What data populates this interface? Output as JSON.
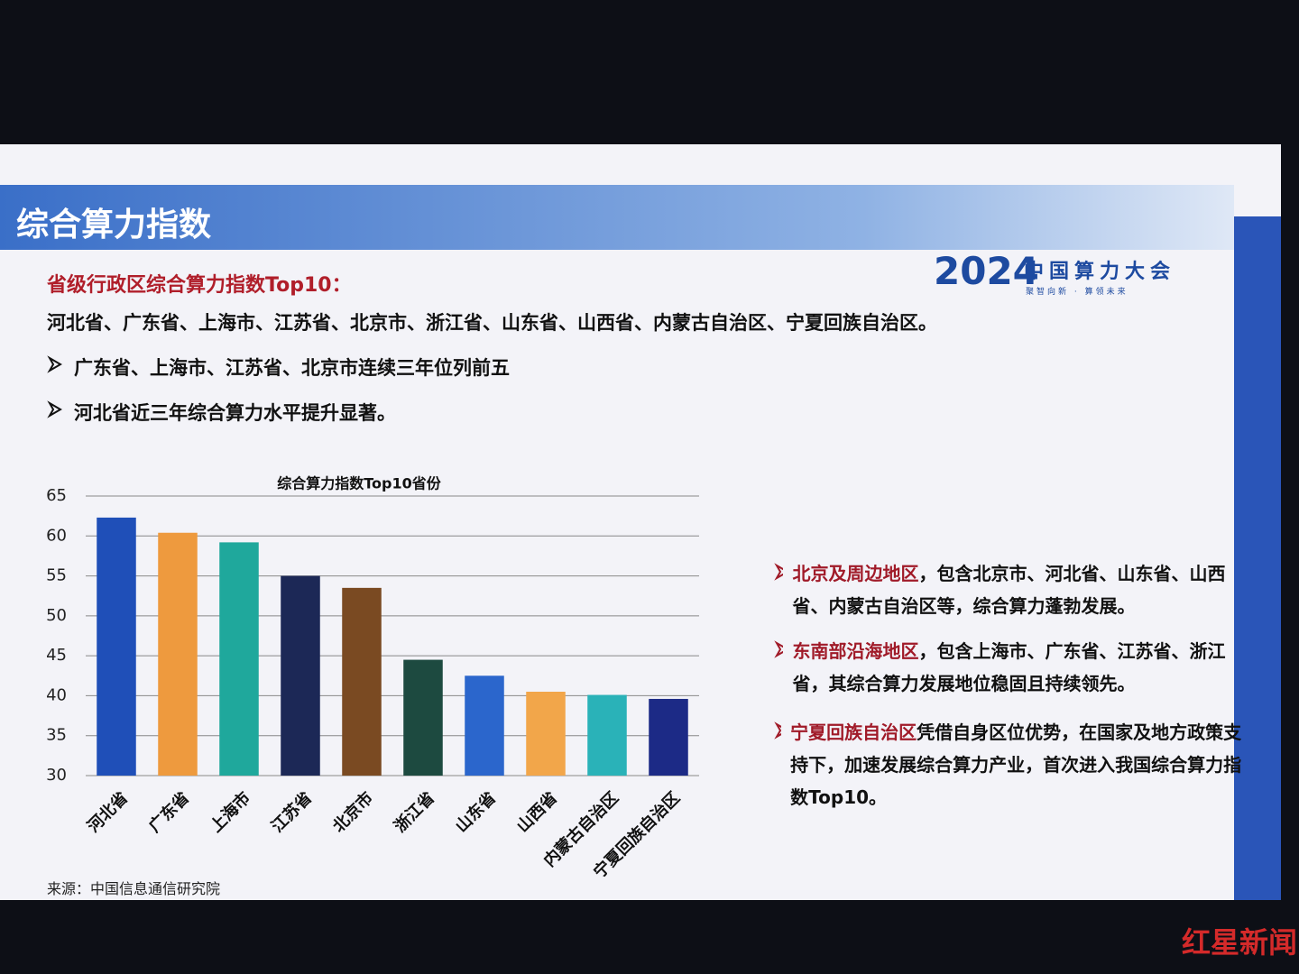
{
  "header": {
    "title": "综合算力指数",
    "logo_year": "2024",
    "logo_name": "中国算力大会",
    "logo_slogan": "聚智向新 · 算领未来"
  },
  "intro": {
    "heading": "省级行政区综合算力指数Top10：",
    "list": "河北省、广东省、上海市、江苏省、北京市、浙江省、山东省、山西省、内蒙古自治区、宁夏回族自治区。",
    "bullets": [
      "广东省、上海市、江苏省、北京市连续三年位列前五",
      "河北省近三年综合算力水平提升显著。"
    ]
  },
  "chart_data": {
    "type": "bar",
    "title": "综合算力指数Top10省份",
    "source": "来源：中国信息通信研究院",
    "categories": [
      "河北省",
      "广东省",
      "上海市",
      "江苏省",
      "北京市",
      "浙江省",
      "山东省",
      "山西省",
      "内蒙古自治区",
      "宁夏回族自治区"
    ],
    "values": [
      62.3,
      60.4,
      59.2,
      55.0,
      53.5,
      44.5,
      42.5,
      40.5,
      40.1,
      39.6
    ],
    "colors": [
      "#1f4fb8",
      "#ee9a3e",
      "#1fa89c",
      "#1c2856",
      "#7a4a22",
      "#1d4a40",
      "#2b66cc",
      "#f2a64a",
      "#2ab2b8",
      "#1c2a86"
    ],
    "ylim": [
      30,
      65
    ],
    "yticks": [
      30,
      35,
      40,
      45,
      50,
      55,
      60,
      65
    ],
    "grid": true
  },
  "notes": [
    {
      "highlight": "北京及周边地区",
      "text": "，包含北京市、河北省、山东省、山西省、内蒙古自治区等，综合算力蓬勃发展。"
    },
    {
      "highlight": "东南部沿海地区",
      "text": "，包含上海市、广东省、江苏省、浙江省，其综合算力发展地位稳固且持续领先。"
    },
    {
      "highlight": "宁夏回族自治区",
      "text": "凭借自身区位优势，在国家及地方政策支持下，加速发展综合算力产业，首次进入我国综合算力指数Top10。"
    }
  ],
  "watermark": "红星新闻"
}
